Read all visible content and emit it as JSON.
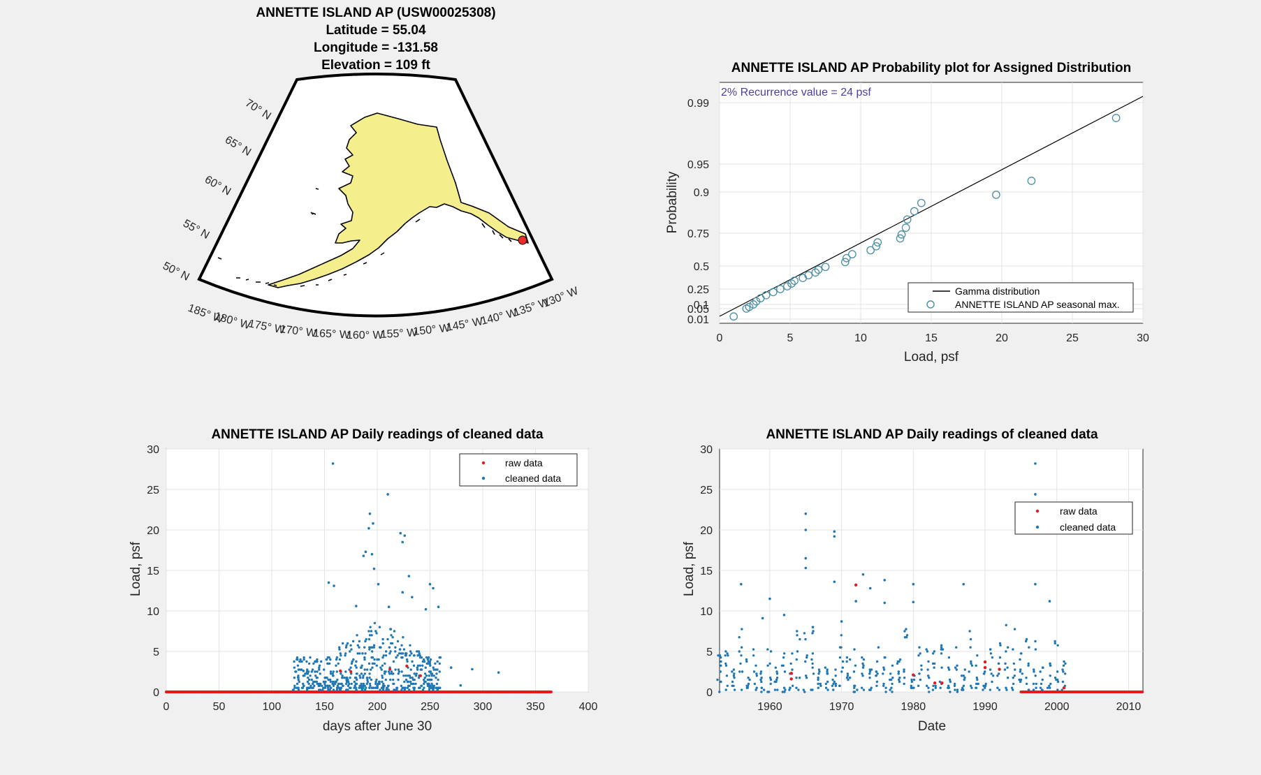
{
  "map": {
    "title_lines": [
      "ANNETTE ISLAND AP (USW00025308)",
      "Latitude = 55.04",
      "Longitude = -131.58",
      "Elevation = 109 ft"
    ],
    "lat_labels": [
      "70° N",
      "65° N",
      "60° N",
      "55° N",
      "50° N"
    ],
    "lon_labels": [
      "185° W",
      "180° W",
      "175° W",
      "170° W",
      "165° W",
      "160° W",
      "155° W",
      "150° W",
      "145° W",
      "140° W",
      "135° W",
      "130° W"
    ],
    "land_color": "#f5ee8c",
    "station_color": "#ee2a2a"
  },
  "chart_data": [
    {
      "type": "scatter",
      "title": "ANNETTE ISLAND AP Probability plot for Assigned Distribution",
      "xlabel": "Load, psf",
      "ylabel": "Probability",
      "xlim": [
        0,
        30
      ],
      "xticks": [
        "0",
        "5",
        "10",
        "15",
        "20",
        "25",
        "30"
      ],
      "ytick_labels": [
        "0.01",
        "0.05",
        "0.1",
        "0.25",
        "0.5",
        "0.75",
        "0.9",
        "0.95",
        "0.99"
      ],
      "yscale": "gamma-probability",
      "grid": true,
      "annotation": "2% Recurrence value = 24 psf",
      "legend_position": "bottom-right",
      "series": [
        {
          "name": "Gamma distribution",
          "kind": "line",
          "color": "#000000",
          "points": [
            [
              0,
              0.003
            ],
            [
              30,
              0.994
            ]
          ]
        },
        {
          "name": "ANNETTE ISLAND AP seasonal max.",
          "kind": "marker",
          "color": "#4a8fa3",
          "x": [
            1.0,
            1.9,
            2.1,
            2.4,
            2.6,
            2.9,
            3.3,
            3.8,
            4.3,
            4.8,
            5.1,
            5.3,
            5.9,
            6.3,
            6.8,
            7.0,
            7.5,
            8.9,
            9.0,
            9.4,
            10.7,
            11.1,
            11.2,
            12.8,
            12.9,
            13.2,
            13.3,
            13.8,
            14.3,
            19.6,
            22.1,
            28.1
          ],
          "y": [
            0.02,
            0.05,
            0.07,
            0.1,
            0.13,
            0.16,
            0.19,
            0.22,
            0.25,
            0.28,
            0.31,
            0.34,
            0.37,
            0.4,
            0.43,
            0.46,
            0.49,
            0.53,
            0.56,
            0.59,
            0.62,
            0.65,
            0.68,
            0.71,
            0.74,
            0.77,
            0.8,
            0.83,
            0.86,
            0.89,
            0.92,
            0.98
          ]
        }
      ]
    },
    {
      "type": "scatter",
      "title": "ANNETTE ISLAND AP Daily readings of cleaned data",
      "xlabel": "days after June 30",
      "ylabel": "Load, psf",
      "xlim": [
        0,
        400
      ],
      "ylim": [
        0,
        30
      ],
      "xticks": [
        "0",
        "50",
        "100",
        "150",
        "200",
        "250",
        "300",
        "350",
        "400"
      ],
      "yticks": [
        "0",
        "5",
        "10",
        "15",
        "20",
        "25",
        "30"
      ],
      "grid": true,
      "legend_position": "top-right",
      "series": [
        {
          "name": "raw data",
          "color": "#e41a1c",
          "baseline_x_range": [
            0,
            365
          ],
          "baseline_y": 0,
          "extra": [
            [
              165,
              2.6
            ],
            [
              175,
              2.5
            ],
            [
              212,
              2.8
            ],
            [
              228,
              3.2
            ],
            [
              241,
              2.0
            ]
          ]
        },
        {
          "name": "cleaned data",
          "color": "#1f77b4",
          "points": [
            [
              158,
              28.2
            ],
            [
              210,
              24.4
            ],
            [
              193,
              22.0
            ],
            [
              196,
              20.8
            ],
            [
              192,
              20.2
            ],
            [
              222,
              19.6
            ],
            [
              226,
              19.3
            ],
            [
              224,
              18.5
            ],
            [
              189,
              17.3
            ],
            [
              195,
              17.0
            ],
            [
              187,
              16.8
            ],
            [
              197,
              15.2
            ],
            [
              230,
              14.3
            ],
            [
              154,
              13.5
            ],
            [
              159,
              13.1
            ],
            [
              201,
              13.3
            ],
            [
              250,
              13.3
            ],
            [
              253,
              12.8
            ],
            [
              224,
              12.3
            ],
            [
              233,
              11.7
            ],
            [
              180,
              10.6
            ],
            [
              211,
              10.5
            ],
            [
              246,
              10.2
            ],
            [
              258,
              10.5
            ],
            [
              130,
              2.6
            ],
            [
              125,
              1.8
            ],
            [
              145,
              1.0
            ],
            [
              270,
              3.0
            ],
            [
              290,
              2.8
            ],
            [
              315,
              2.4
            ],
            [
              279,
              0.8
            ]
          ],
          "dense_cluster": {
            "x_range": [
              120,
              260
            ],
            "y_range": [
              0.3,
              8.5
            ],
            "count": 560
          }
        }
      ]
    },
    {
      "type": "scatter",
      "title": "ANNETTE ISLAND AP Daily readings of cleaned data",
      "xlabel": "Date",
      "ylabel": "Load, psf",
      "xlim": [
        1953,
        2012
      ],
      "ylim": [
        0,
        30
      ],
      "xticks": [
        "1960",
        "1970",
        "1980",
        "1990",
        "2000",
        "2010"
      ],
      "yticks": [
        "0",
        "5",
        "10",
        "15",
        "20",
        "25",
        "30"
      ],
      "grid": true,
      "legend_position": "top-right",
      "series": [
        {
          "name": "raw data",
          "color": "#e41a1c",
          "points": [
            [
              1963,
              2.3
            ],
            [
              1963,
              1.6
            ],
            [
              1972,
              13.2
            ],
            [
              1980,
              2.1
            ],
            [
              1983,
              1.1
            ],
            [
              1984,
              1.1
            ],
            [
              1990,
              3.7
            ],
            [
              1990,
              3.0
            ],
            [
              1992,
              2.8
            ],
            [
              2001,
              0.5
            ]
          ],
          "baseline_x_range": [
            1995,
            2012
          ],
          "baseline_y": 0
        },
        {
          "name": "cleaned data",
          "color": "#1f77b4",
          "points": [
            [
              1956,
              13.3
            ],
            [
              1960,
              11.5
            ],
            [
              1965,
              22.0
            ],
            [
              1965,
              20.0
            ],
            [
              1965,
              16.5
            ],
            [
              1965,
              15.3
            ],
            [
              1969,
              19.8
            ],
            [
              1969,
              19.2
            ],
            [
              1969,
              13.6
            ],
            [
              1973,
              14.5
            ],
            [
              1974,
              12.8
            ],
            [
              1976,
              13.8
            ],
            [
              1980,
              13.3
            ],
            [
              1980,
              11.1
            ],
            [
              1987,
              13.3
            ],
            [
              1997,
              28.2
            ],
            [
              1997,
              24.4
            ],
            [
              1997,
              13.3
            ],
            [
              1999,
              11.2
            ],
            [
              1972,
              11.2
            ],
            [
              1976,
              11.0
            ],
            [
              1959,
              9.1
            ],
            [
              1962,
              9.5
            ],
            [
              1966,
              8.0
            ],
            [
              1970,
              8.7
            ]
          ],
          "dense_columns": {
            "x_range": [
              1953,
              2001
            ],
            "y_range": [
              0.1,
              8.5
            ],
            "count": 430
          }
        }
      ]
    }
  ]
}
